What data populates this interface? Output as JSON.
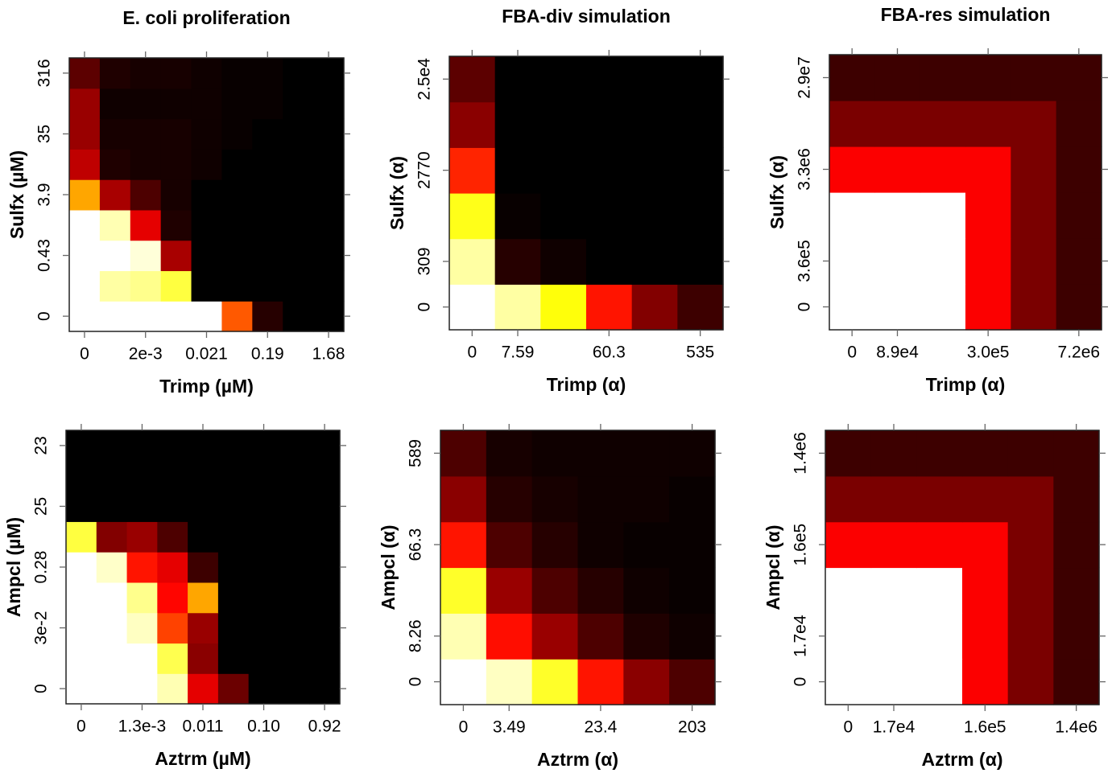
{
  "chart_data": [
    {
      "type": "heatmap",
      "title": "E. coli proliferation",
      "x_label": "Trimp (µM)",
      "y_label": "Sulfx (µM)",
      "x_categories": [
        "0",
        null,
        "2e-3",
        null,
        "0.021",
        null,
        "0.19",
        null,
        "1.68"
      ],
      "y_categories": [
        "0",
        null,
        "0.43",
        null,
        "3.9",
        null,
        "35",
        null,
        "316"
      ],
      "zlim": [
        0,
        1
      ],
      "colormap": "heat",
      "values": [
        [
          1,
          1,
          1,
          1,
          1,
          0.45,
          0.05,
          0,
          0
        ],
        [
          1,
          0.88,
          0.85,
          0.75,
          0,
          0,
          0,
          0,
          0
        ],
        [
          1,
          1,
          0.95,
          0.22,
          0,
          0,
          0,
          0,
          0
        ],
        [
          1,
          0.9,
          0.3,
          0.04,
          0,
          0,
          0,
          0,
          0
        ],
        [
          0.55,
          0.22,
          0.1,
          0.03,
          0,
          0,
          0,
          0,
          0
        ],
        [
          0.25,
          0.04,
          0.03,
          0.03,
          0.02,
          0,
          0,
          0,
          0
        ],
        [
          0.2,
          0.03,
          0.03,
          0.03,
          0.02,
          0.01,
          0,
          0,
          0
        ],
        [
          0.2,
          0.02,
          0.02,
          0.02,
          0.02,
          0.01,
          0.01,
          0,
          0
        ],
        [
          0.12,
          0.04,
          0.03,
          0.03,
          0.02,
          0.01,
          0.01,
          0,
          0
        ]
      ]
    },
    {
      "type": "heatmap",
      "title": "FBA-div simulation",
      "x_label": "Trimp (α)",
      "y_label": "Sulfx (α)",
      "x_categories": [
        "0",
        "7.59",
        null,
        "60.3",
        null,
        "535"
      ],
      "y_categories": [
        "0",
        "309",
        null,
        "2770",
        null,
        "2.5e4"
      ],
      "zlim": [
        0,
        1
      ],
      "colormap": "heat",
      "values": [
        [
          1,
          0.88,
          0.68,
          0.36,
          0.17,
          0.08
        ],
        [
          0.88,
          0.05,
          0.02,
          0,
          0,
          0
        ],
        [
          0.7,
          0.01,
          0,
          0,
          0,
          0
        ],
        [
          0.38,
          0,
          0,
          0,
          0,
          0
        ],
        [
          0.18,
          0,
          0,
          0,
          0,
          0
        ],
        [
          0.12,
          0,
          0,
          0,
          0,
          0
        ]
      ]
    },
    {
      "type": "heatmap",
      "title": "FBA-res simulation",
      "x_label": "Trimp (α)",
      "y_label": "Sulfx (α)",
      "x_categories": [
        "0",
        "8.9e4",
        null,
        "3.0e5",
        null,
        "7.2e6"
      ],
      "y_categories": [
        "0",
        "3.6e5",
        null,
        "3.3e6",
        null,
        "2.9e7"
      ],
      "zlim": [
        0,
        1
      ],
      "colormap": "heat",
      "values": [
        [
          1,
          1,
          1,
          0.33,
          0.16,
          0.08
        ],
        [
          1,
          1,
          1,
          0.33,
          0.16,
          0.08
        ],
        [
          1,
          1,
          1,
          0.33,
          0.16,
          0.08
        ],
        [
          0.33,
          0.33,
          0.33,
          0.33,
          0.16,
          0.08
        ],
        [
          0.16,
          0.16,
          0.16,
          0.16,
          0.16,
          0.08
        ],
        [
          0.08,
          0.08,
          0.08,
          0.08,
          0.08,
          0.08
        ]
      ]
    },
    {
      "type": "heatmap",
      "x_label": "Aztrm (µM)",
      "y_label": "Ampcl (µM)",
      "x_categories": [
        "0",
        null,
        "1.3e-3",
        null,
        "0.011",
        null,
        "0.10",
        null,
        "0.92"
      ],
      "y_categories": [
        "0",
        null,
        "3e-2",
        null,
        "0.28",
        null,
        "25",
        null,
        "23"
      ],
      "zlim": [
        0,
        1
      ],
      "colormap": "heat",
      "values": [
        [
          1,
          1,
          1,
          0.9,
          0.3,
          0.14,
          0,
          0,
          0
        ],
        [
          1,
          1,
          1,
          0.77,
          0.18,
          0,
          0,
          0,
          0
        ],
        [
          1,
          1,
          0.92,
          0.42,
          0.2,
          0,
          0,
          0,
          0
        ],
        [
          1,
          1,
          0.85,
          0.34,
          0.55,
          0,
          0,
          0,
          0
        ],
        [
          1,
          0.93,
          0.36,
          0.3,
          0.08,
          0,
          0,
          0,
          0
        ],
        [
          0.75,
          0.17,
          0.2,
          0.1,
          0,
          0,
          0,
          0,
          0
        ],
        [
          0,
          0,
          0,
          0,
          0,
          0,
          0,
          0,
          0
        ],
        [
          0,
          0,
          0,
          0,
          0,
          0,
          0,
          0,
          0
        ],
        [
          0,
          0,
          0,
          0,
          0,
          0,
          0,
          0,
          0
        ]
      ]
    },
    {
      "type": "heatmap",
      "x_label": "Aztrm (α)",
      "y_label": "Ampcl (α)",
      "x_categories": [
        "0",
        "3.49",
        null,
        "23.4",
        null,
        "203"
      ],
      "y_categories": [
        "0",
        "8.26",
        null,
        "66.3",
        null,
        "589"
      ],
      "zlim": [
        0,
        1
      ],
      "colormap": "heat",
      "values": [
        [
          1,
          0.92,
          0.72,
          0.36,
          0.18,
          0.1
        ],
        [
          0.9,
          0.35,
          0.2,
          0.1,
          0.04,
          0.02
        ],
        [
          0.72,
          0.2,
          0.1,
          0.05,
          0.02,
          0.01
        ],
        [
          0.36,
          0.1,
          0.05,
          0.02,
          0.01,
          0.01
        ],
        [
          0.18,
          0.05,
          0.03,
          0.02,
          0.02,
          0.01
        ],
        [
          0.1,
          0.03,
          0.02,
          0.02,
          0.02,
          0.02
        ]
      ]
    },
    {
      "type": "heatmap",
      "x_label": "Aztrm (α)",
      "y_label": "Ampcl (α)",
      "x_categories": [
        "0",
        "1.7e4",
        null,
        "1.6e5",
        null,
        "1.4e6"
      ],
      "y_categories": [
        "0",
        "1.7e4",
        null,
        "1.6e5",
        null,
        "1.4e6"
      ],
      "zlim": [
        0,
        1
      ],
      "colormap": "heat",
      "values": [
        [
          1,
          1,
          1,
          0.33,
          0.16,
          0.08
        ],
        [
          1,
          1,
          1,
          0.33,
          0.16,
          0.08
        ],
        [
          1,
          1,
          1,
          0.33,
          0.16,
          0.08
        ],
        [
          0.33,
          0.33,
          0.33,
          0.33,
          0.16,
          0.08
        ],
        [
          0.16,
          0.16,
          0.16,
          0.16,
          0.16,
          0.08
        ],
        [
          0.08,
          0.08,
          0.08,
          0.08,
          0.08,
          0.08
        ]
      ]
    }
  ]
}
